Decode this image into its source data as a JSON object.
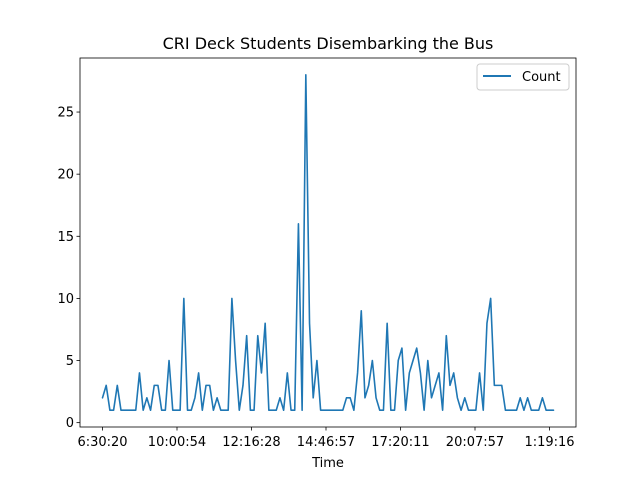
{
  "chart_data": {
    "type": "line",
    "title": "CRI Deck Students Disembarking the Bus",
    "xlabel": "Time",
    "ylabel": "",
    "x_tick_labels": [
      "6:30:20",
      "10:00:54",
      "12:16:28",
      "14:46:57",
      "17:20:11",
      "20:07:57",
      "1:19:16"
    ],
    "y_ticks": [
      0,
      5,
      10,
      15,
      20,
      25
    ],
    "ylim": [
      -0.35,
      29.35
    ],
    "grid": false,
    "legend": {
      "position": "top-right",
      "entries": [
        "Count"
      ]
    },
    "series": [
      {
        "name": "Count",
        "color": "#1f77b4",
        "values": [
          2,
          3,
          1,
          1,
          3,
          1,
          1,
          1,
          1,
          1,
          4,
          1,
          2,
          1,
          3,
          3,
          1,
          1,
          5,
          1,
          1,
          1,
          10,
          1,
          1,
          2,
          4,
          1,
          3,
          3,
          1,
          2,
          1,
          1,
          1,
          10,
          5,
          1,
          3,
          7,
          1,
          1,
          7,
          4,
          8,
          1,
          1,
          1,
          2,
          1,
          4,
          1,
          1,
          16,
          1,
          28,
          8,
          2,
          5,
          1,
          1,
          1,
          1,
          1,
          1,
          1,
          2,
          2,
          1,
          4,
          9,
          2,
          3,
          5,
          2,
          1,
          1,
          8,
          1,
          1,
          5,
          6,
          1,
          4,
          5,
          6,
          4,
          1,
          5,
          2,
          3,
          4,
          1,
          7,
          3,
          4,
          2,
          1,
          2,
          1,
          1,
          1,
          4,
          1,
          8,
          10,
          3,
          3,
          3,
          1,
          1,
          1,
          1,
          2,
          1,
          2,
          1,
          1,
          1,
          2,
          1,
          1,
          1
        ]
      }
    ]
  }
}
